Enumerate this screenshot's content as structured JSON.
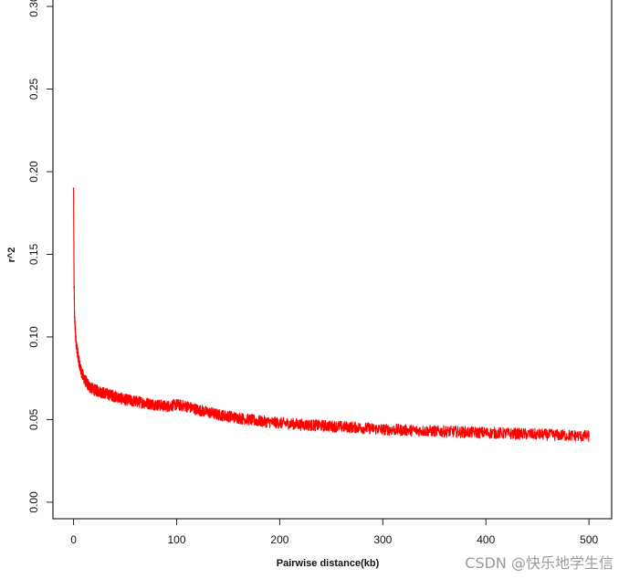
{
  "chart_data": {
    "type": "line",
    "title": "",
    "xlabel": "Pairwise distance(kb)",
    "ylabel": "r^2",
    "xlim": [
      -20,
      522
    ],
    "ylim": [
      -0.01,
      0.305
    ],
    "xticks": [
      0,
      100,
      200,
      300,
      400,
      500
    ],
    "xtick_labels": [
      "0",
      "100",
      "200",
      "300",
      "400",
      "500"
    ],
    "yticks": [
      0.0,
      0.05,
      0.1,
      0.15,
      0.2,
      0.25,
      0.3
    ],
    "ytick_labels": [
      "0.00",
      "0.05",
      "0.10",
      "0.15",
      "0.20",
      "0.25",
      "0.30"
    ],
    "grid": false,
    "line_color": "#ff0000",
    "series": [
      {
        "x": [
          0,
          0.5,
          1,
          2,
          3,
          5,
          7,
          10,
          15,
          20,
          25,
          30,
          40,
          50,
          60,
          70,
          80,
          90,
          100,
          110,
          120,
          140,
          160,
          180,
          200,
          220,
          250,
          280,
          300,
          350,
          400,
          450,
          500
        ],
        "values": [
          0.19,
          0.13,
          0.112,
          0.1,
          0.094,
          0.086,
          0.08,
          0.075,
          0.07,
          0.068,
          0.067,
          0.066,
          0.064,
          0.062,
          0.061,
          0.06,
          0.059,
          0.058,
          0.059,
          0.058,
          0.056,
          0.053,
          0.051,
          0.049,
          0.048,
          0.047,
          0.046,
          0.045,
          0.044,
          0.043,
          0.042,
          0.041,
          0.04
        ]
      }
    ]
  },
  "watermark": "CSDN @快乐地学生信"
}
